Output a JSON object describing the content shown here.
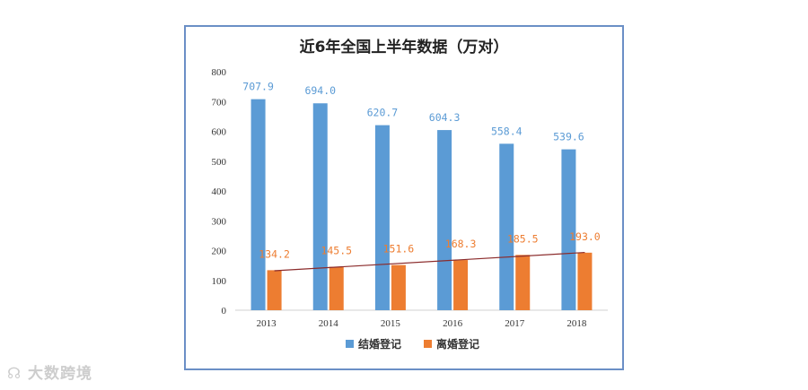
{
  "chart_data": {
    "type": "bar",
    "title": "近6年全国上半年数据（万对）",
    "categories": [
      "2013",
      "2014",
      "2015",
      "2016",
      "2017",
      "2018"
    ],
    "series": [
      {
        "name": "结婚登记",
        "values": [
          707.9,
          694.0,
          620.7,
          604.3,
          558.4,
          539.6
        ],
        "color": "#5b9bd5"
      },
      {
        "name": "离婚登记",
        "values": [
          134.2,
          145.5,
          151.6,
          168.3,
          185.5,
          193.0
        ],
        "color": "#ed7d31"
      }
    ],
    "data_labels": [
      [
        "707.9",
        "694.0",
        "620.7",
        "604.3",
        "558.4",
        "539.6"
      ],
      [
        "134.2",
        "145.5",
        "151.6",
        "168.3",
        "185.5",
        "193.0"
      ]
    ],
    "yticks": [
      "0",
      "100",
      "200",
      "300",
      "400",
      "500",
      "600",
      "700",
      "800"
    ],
    "ylim": [
      0,
      800
    ],
    "trendline": {
      "series": "离婚登记",
      "color": "#8b2b2b",
      "type": "linear"
    },
    "legend_position": "bottom",
    "grid": false
  },
  "watermark": {
    "text": "大数跨境"
  }
}
